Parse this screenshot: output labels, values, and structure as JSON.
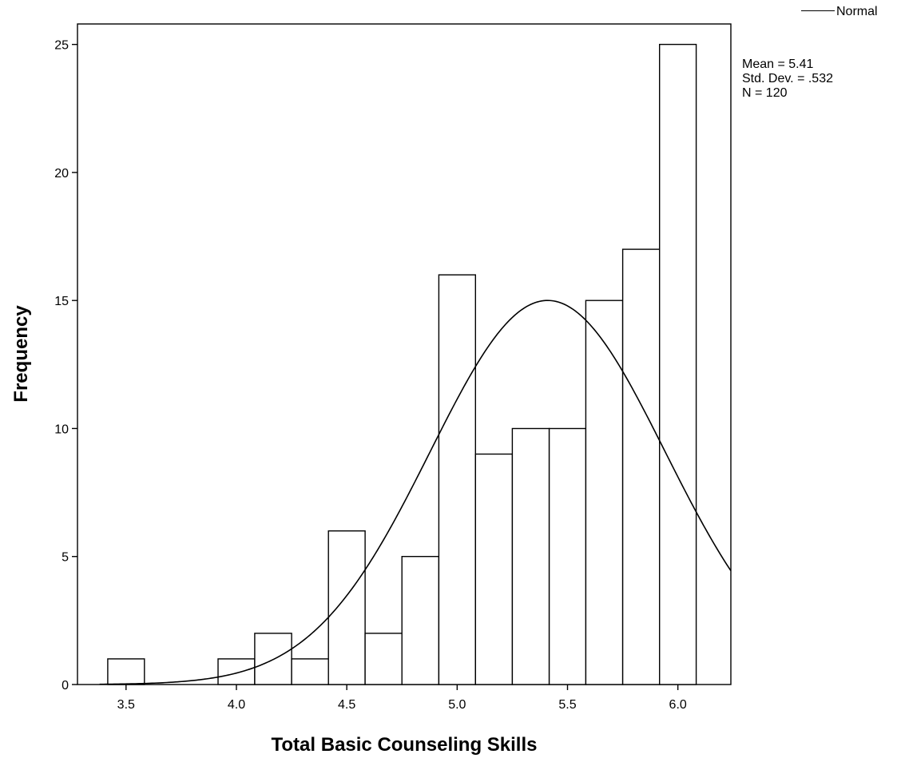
{
  "chart_data": {
    "type": "bar",
    "subtype": "histogram",
    "xlabel": "Total Basic Counseling Skills",
    "ylabel": "Frequency",
    "xlim": [
      3.28,
      6.24
    ],
    "ylim": [
      0,
      25.8
    ],
    "x_ticks": [
      3.5,
      4.0,
      4.5,
      5.0,
      5.5,
      6.0
    ],
    "x_tick_labels": [
      "3.5",
      "4.0",
      "4.5",
      "5.0",
      "5.5",
      "6.0"
    ],
    "y_ticks": [
      0,
      5,
      10,
      15,
      20,
      25
    ],
    "y_tick_labels": [
      "0",
      "5",
      "10",
      "15",
      "20",
      "25"
    ],
    "bin_width": 0.1667,
    "bins": [
      {
        "x0": 3.417,
        "x1": 3.583,
        "count": 1
      },
      {
        "x0": 3.583,
        "x1": 3.75,
        "count": 0
      },
      {
        "x0": 3.75,
        "x1": 3.917,
        "count": 0
      },
      {
        "x0": 3.917,
        "x1": 4.083,
        "count": 1
      },
      {
        "x0": 4.083,
        "x1": 4.25,
        "count": 2
      },
      {
        "x0": 4.25,
        "x1": 4.417,
        "count": 1
      },
      {
        "x0": 4.417,
        "x1": 4.583,
        "count": 6
      },
      {
        "x0": 4.583,
        "x1": 4.75,
        "count": 2
      },
      {
        "x0": 4.75,
        "x1": 4.917,
        "count": 5
      },
      {
        "x0": 4.917,
        "x1": 5.083,
        "count": 16
      },
      {
        "x0": 5.083,
        "x1": 5.25,
        "count": 9
      },
      {
        "x0": 5.25,
        "x1": 5.417,
        "count": 10
      },
      {
        "x0": 5.417,
        "x1": 5.583,
        "count": 10
      },
      {
        "x0": 5.583,
        "x1": 5.75,
        "count": 15
      },
      {
        "x0": 5.75,
        "x1": 5.917,
        "count": 17
      },
      {
        "x0": 5.917,
        "x1": 6.083,
        "count": 25
      }
    ],
    "normal_curve": {
      "mean": 5.41,
      "std_dev": 0.532,
      "n": 120,
      "color": "#000000"
    },
    "legend": {
      "entries": [
        {
          "label": "Normal"
        }
      ],
      "placement": "top-right"
    },
    "stats": {
      "mean": "Mean = 5.41",
      "std": "Std. Dev. = .532",
      "n": "N = 120"
    },
    "grid": false,
    "bar_fill": "#ffffff",
    "bar_stroke": "#000000"
  }
}
